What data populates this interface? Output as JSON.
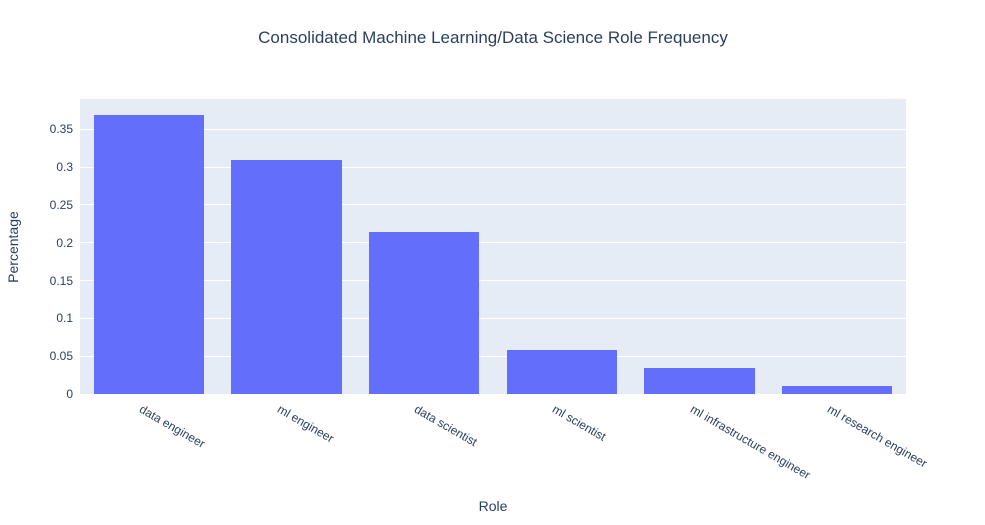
{
  "chart_data": {
    "type": "bar",
    "title": "Consolidated Machine Learning/Data Science Role Frequency",
    "xlabel": "Role",
    "ylabel": "Percentage",
    "categories": [
      "data engineer",
      "ml engineer",
      "data scientist",
      "ml scientist",
      "ml infrastructure engineer",
      "ml research engineer"
    ],
    "values": [
      0.369,
      0.31,
      0.214,
      0.058,
      0.034,
      0.011
    ],
    "ylim": [
      0,
      0.39
    ],
    "yticks": [
      0,
      0.05,
      0.1,
      0.15,
      0.2,
      0.25,
      0.3,
      0.35
    ],
    "ytick_labels": [
      "0",
      "0.05",
      "0.1",
      "0.15",
      "0.2",
      "0.25",
      "0.3",
      "0.35"
    ],
    "xtick_angle_deg": 30,
    "grid": true,
    "legend": false,
    "colors": {
      "bar": "#636efa",
      "plot_bg": "#e5ecf6",
      "grid": "#ffffff",
      "text": "#2a3f5f",
      "paper_bg": "#ffffff"
    }
  }
}
